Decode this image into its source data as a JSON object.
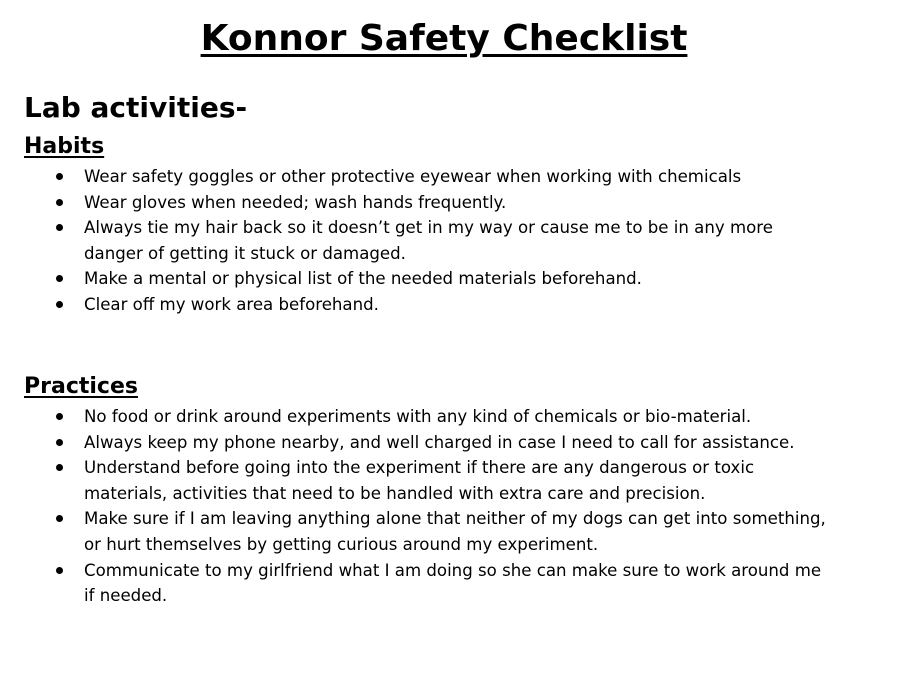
{
  "document": {
    "title": "Konnor Safety Checklist",
    "heading": "Lab activities-",
    "sections": [
      {
        "heading": "Habits",
        "items": [
          "Wear safety goggles or other protective eyewear when working with chemicals",
          "Wear gloves when needed; wash hands frequently.",
          "Always tie my hair back so it doesn’t get in my way or cause me to be in any more danger of getting it stuck or damaged.",
          "Make a mental or physical list of the needed materials beforehand.",
          "Clear off my work area beforehand."
        ]
      },
      {
        "heading": "Practices",
        "items": [
          "No food or drink around experiments with any kind of chemicals or bio-material.",
          "Always keep my phone nearby, and well charged in case I need to call for assistance.",
          "Understand before going into the experiment if there are any dangerous or toxic materials, activities that need to be handled with extra care and precision.",
          "Make sure if I am leaving anything alone that neither of my dogs can get into something, or hurt themselves by getting curious around my experiment.",
          "Communicate to my girlfriend what I am doing so she can make sure to work around me if needed."
        ]
      }
    ]
  }
}
